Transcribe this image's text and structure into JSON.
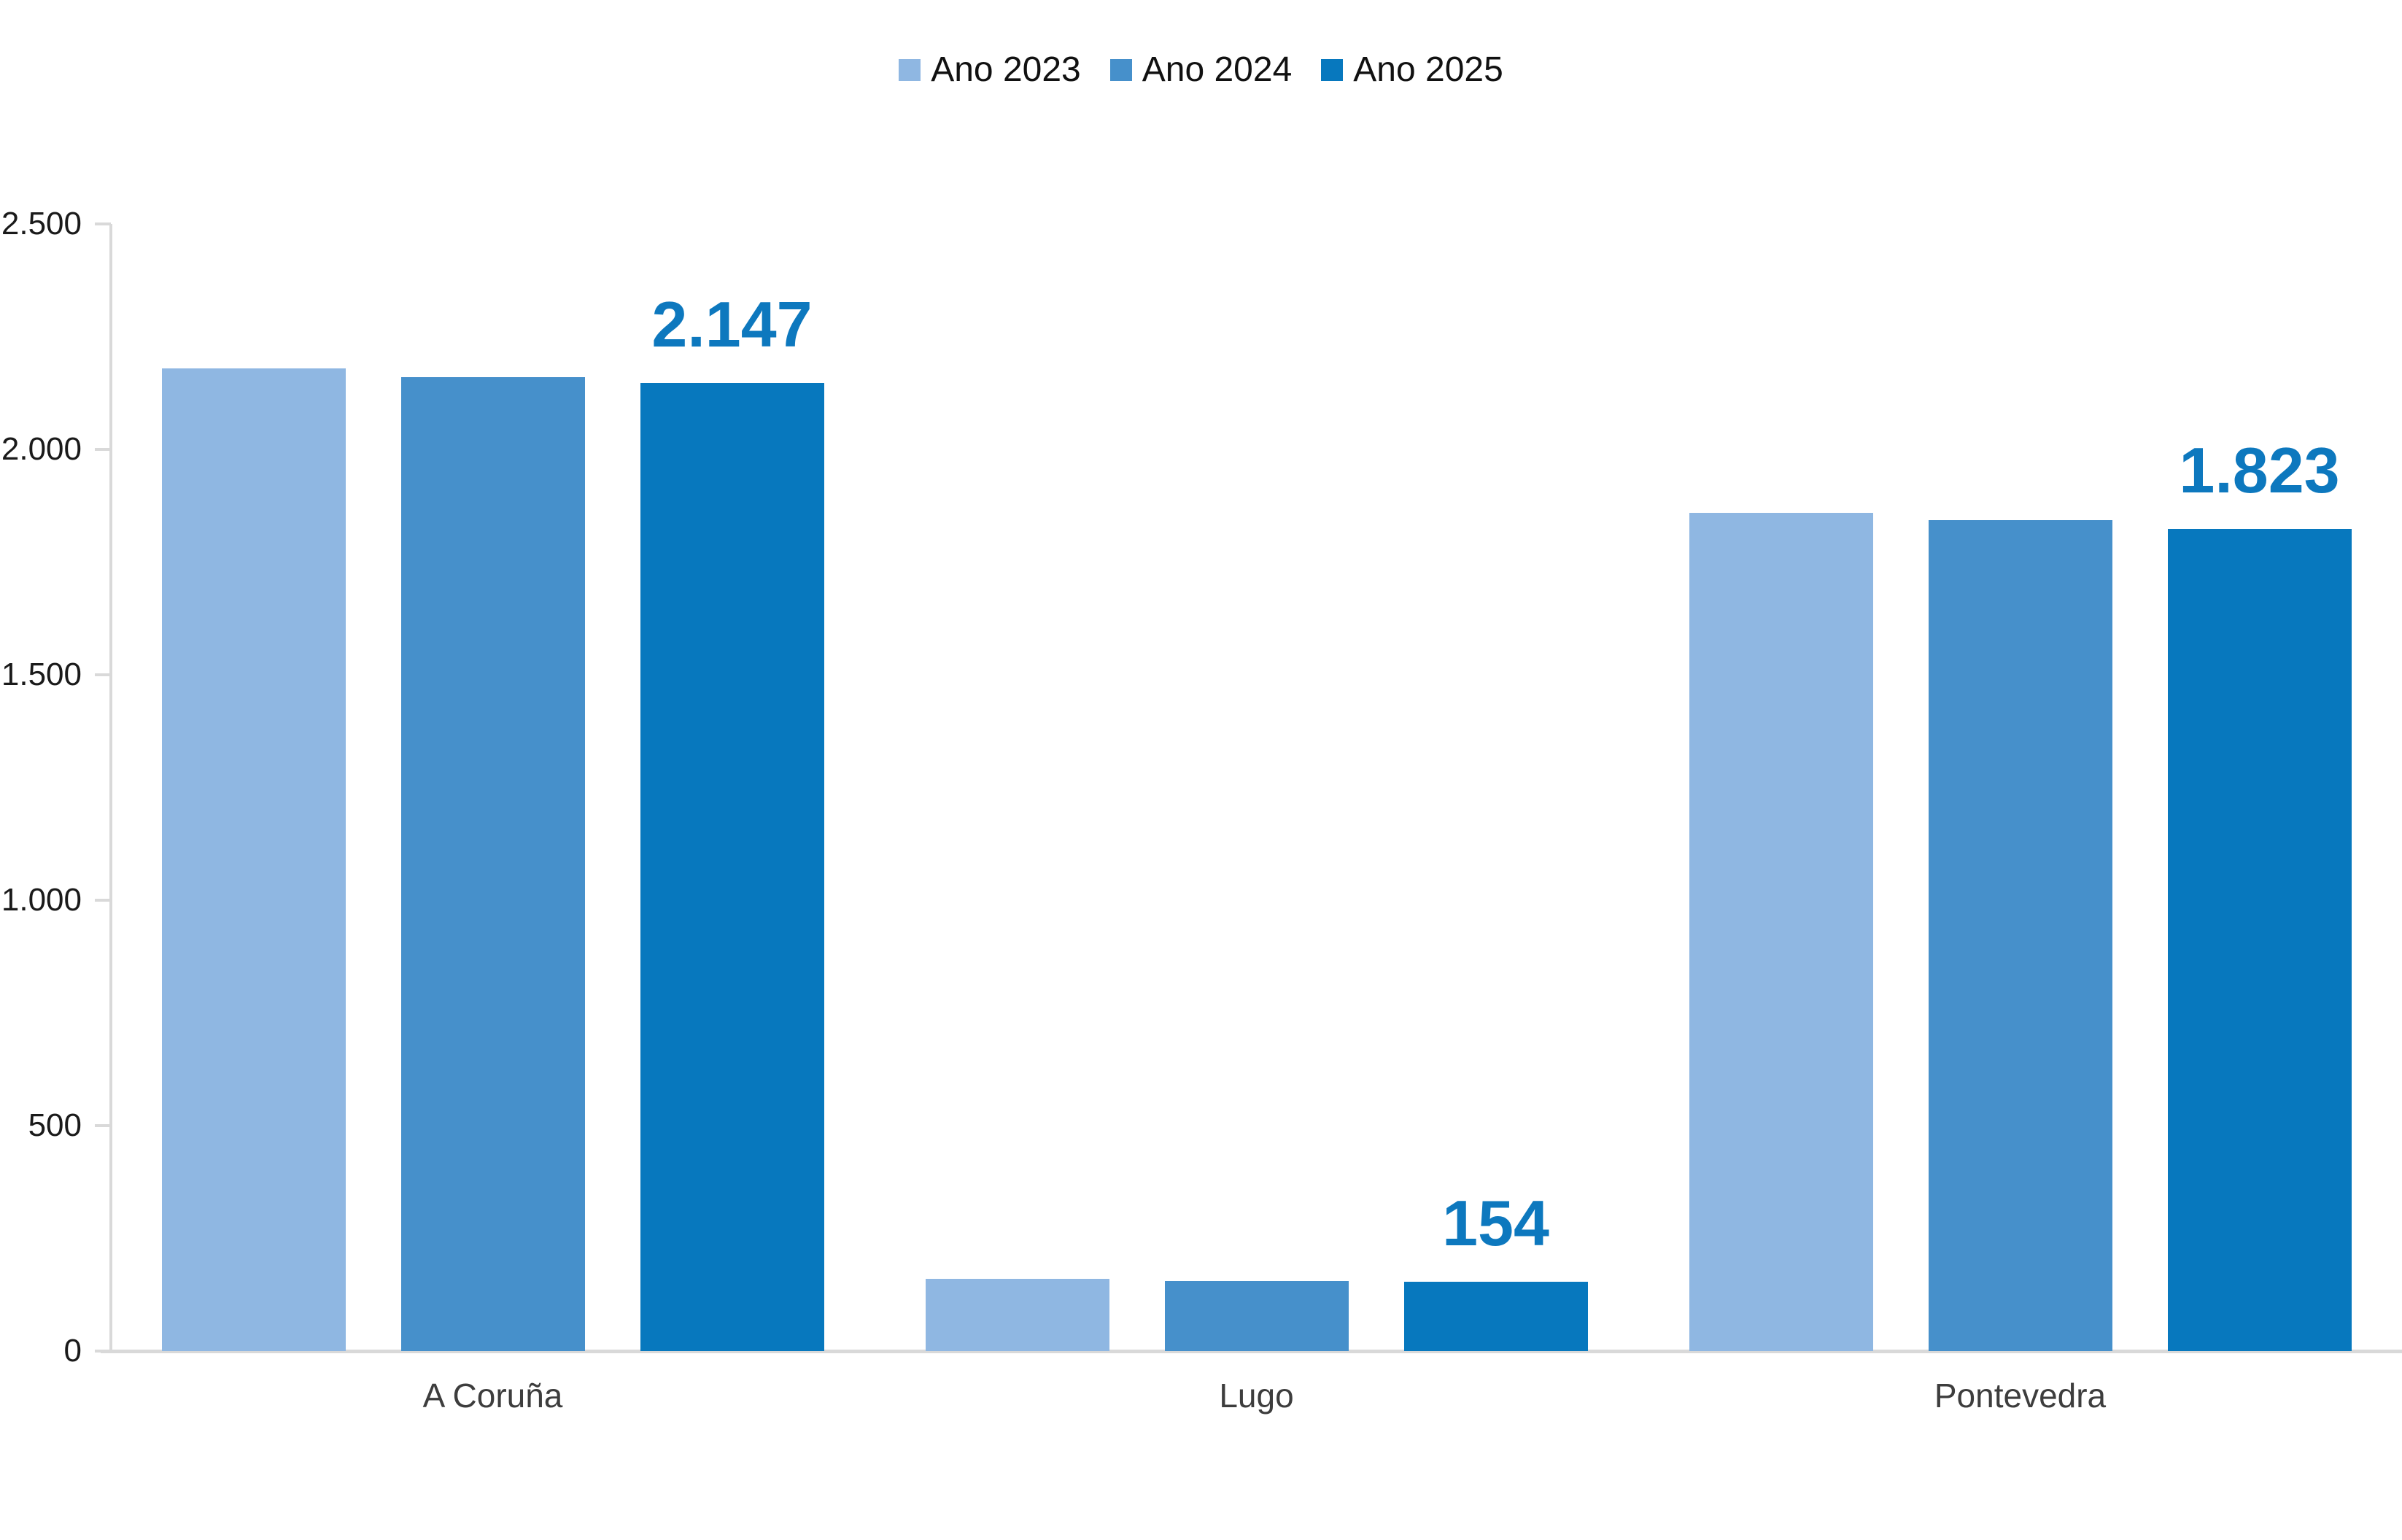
{
  "chart_data": {
    "type": "bar",
    "title": "",
    "categories": [
      "A Coruña",
      "Lugo",
      "Pontevedra"
    ],
    "series": [
      {
        "name": "Ano 2023",
        "color": "#8FB7E2",
        "values": [
          2180,
          160,
          1860
        ]
      },
      {
        "name": "Ano 2024",
        "color": "#4690CB",
        "values": [
          2160,
          155,
          1843
        ]
      },
      {
        "name": "Ano 2025",
        "color": "#0778BE",
        "values": [
          2147,
          154,
          1823
        ]
      }
    ],
    "data_labels": {
      "series_index": 2,
      "formatted": [
        "2.147",
        "154",
        "1.823"
      ],
      "color": "#0D78BE"
    },
    "y_axis": {
      "min": 0,
      "max": 2500,
      "tick_step": 500,
      "tick_labels": [
        "2.500",
        "2.000",
        "1.500",
        "1.000",
        "500",
        "0"
      ]
    },
    "legend_position": "top",
    "grid": false,
    "colors": {
      "axis_line": "#d9d9d9",
      "tick_text": "#1a1a1a",
      "category_text": "#3d3d3d",
      "legend_text": "#111111",
      "background": "#ffffff"
    }
  }
}
